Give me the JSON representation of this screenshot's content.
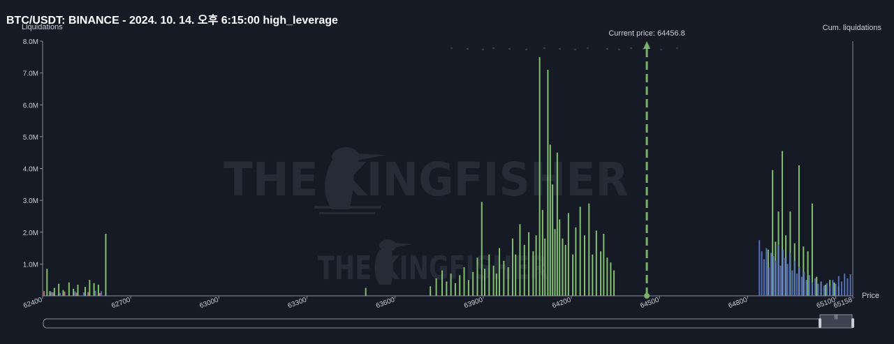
{
  "title": "BTC/USDT: BINANCE - 2024. 10. 14. 오후 6:15:00 high_leverage",
  "watermark": "THE KINGFISHER",
  "current_price_label": "Current price: 64456.8",
  "slider_grip": "|||",
  "colors": {
    "background": "#161a25",
    "green": "#8fd17a",
    "blue": "#5b78c8",
    "red": "#c87a7a",
    "current_price": "#79b168",
    "axis": "#8a8f9c"
  },
  "chart_data": {
    "type": "bar",
    "ylabel": "Liquidations",
    "y2label": "Cum. liquidations",
    "xlabel": "Price",
    "ylim": [
      0,
      8000000
    ],
    "xlim": [
      62400,
      65158
    ],
    "y_ticks": [
      "8.0M",
      "7.0M",
      "6.0M",
      "5.0M",
      "4.0M",
      "3.0M",
      "2.0M",
      "1.0M"
    ],
    "y_tick_values": [
      8000000,
      7000000,
      6000000,
      5000000,
      4000000,
      3000000,
      2000000,
      1000000
    ],
    "x_ticks": [
      "62400",
      "62700",
      "63000",
      "63300",
      "63600",
      "63900",
      "64200",
      "64500",
      "64800",
      "65100",
      "65158"
    ],
    "x_tick_values": [
      62400,
      62700,
      63000,
      63300,
      63600,
      63900,
      64200,
      64500,
      64800,
      65100,
      65158
    ],
    "current_price": 64456.8,
    "series": [
      {
        "color": "green",
        "points": [
          [
            62415,
            850000
          ],
          [
            62425,
            150000
          ],
          [
            62440,
            250000
          ],
          [
            62455,
            380000
          ],
          [
            62470,
            180000
          ],
          [
            62490,
            420000
          ],
          [
            62505,
            220000
          ],
          [
            62520,
            350000
          ],
          [
            62545,
            280000
          ],
          [
            62560,
            500000
          ],
          [
            62575,
            400000
          ],
          [
            62590,
            350000
          ],
          [
            62615,
            1950000
          ],
          [
            63500,
            250000
          ],
          [
            63720,
            300000
          ],
          [
            63740,
            550000
          ],
          [
            63760,
            800000
          ],
          [
            63775,
            450000
          ],
          [
            63790,
            700000
          ],
          [
            63805,
            400000
          ],
          [
            63820,
            650000
          ],
          [
            63835,
            900000
          ],
          [
            63850,
            500000
          ],
          [
            63865,
            750000
          ],
          [
            63880,
            1200000
          ],
          [
            63895,
            2950000
          ],
          [
            63905,
            850000
          ],
          [
            63920,
            1300000
          ],
          [
            63935,
            950000
          ],
          [
            63945,
            700000
          ],
          [
            63955,
            1500000
          ],
          [
            63970,
            1100000
          ],
          [
            63985,
            900000
          ],
          [
            64000,
            1800000
          ],
          [
            64010,
            1300000
          ],
          [
            64025,
            2250000
          ],
          [
            64040,
            1600000
          ],
          [
            64055,
            2000000
          ],
          [
            64070,
            1400000
          ],
          [
            64080,
            1900000
          ],
          [
            64092,
            7500000
          ],
          [
            64102,
            2700000
          ],
          [
            64110,
            1800000
          ],
          [
            64120,
            7100000
          ],
          [
            64128,
            4750000
          ],
          [
            64136,
            3500000
          ],
          [
            64144,
            2100000
          ],
          [
            64152,
            4500000
          ],
          [
            64160,
            2400000
          ],
          [
            64170,
            1800000
          ],
          [
            64180,
            1600000
          ],
          [
            64190,
            2600000
          ],
          [
            64205,
            1300000
          ],
          [
            64215,
            2150000
          ],
          [
            64230,
            2800000
          ],
          [
            64245,
            1900000
          ],
          [
            64260,
            2900000
          ],
          [
            64272,
            1300000
          ],
          [
            64285,
            2050000
          ],
          [
            64300,
            1400000
          ],
          [
            64310,
            1950000
          ],
          [
            64322,
            1200000
          ],
          [
            64334,
            1050000
          ],
          [
            64345,
            800000
          ],
          [
            64870,
            1450000
          ],
          [
            64885,
            3950000
          ],
          [
            64895,
            1700000
          ],
          [
            64905,
            2650000
          ],
          [
            64918,
            4550000
          ],
          [
            64930,
            1900000
          ],
          [
            64945,
            2650000
          ],
          [
            64960,
            1650000
          ],
          [
            64975,
            4100000
          ],
          [
            64990,
            1550000
          ],
          [
            65005,
            1400000
          ],
          [
            65020,
            2900000
          ],
          [
            65035,
            600000
          ],
          [
            65050,
            450000
          ],
          [
            65065,
            350000
          ],
          [
            65080,
            500000
          ],
          [
            65095,
            420000
          ],
          [
            65110,
            300000
          ]
        ]
      },
      {
        "color": "blue",
        "points": [
          [
            62430,
            120000
          ],
          [
            62460,
            90000
          ],
          [
            62510,
            140000
          ],
          [
            62540,
            110000
          ],
          [
            62580,
            160000
          ],
          [
            62600,
            150000
          ],
          [
            64840,
            1750000
          ],
          [
            64848,
            1400000
          ],
          [
            64856,
            1150000
          ],
          [
            64864,
            1500000
          ],
          [
            64872,
            900000
          ],
          [
            64880,
            1350000
          ],
          [
            64888,
            1250000
          ],
          [
            64896,
            1100000
          ],
          [
            64904,
            1600000
          ],
          [
            64912,
            950000
          ],
          [
            64920,
            1450000
          ],
          [
            64928,
            1200000
          ],
          [
            64936,
            1000000
          ],
          [
            64944,
            1350000
          ],
          [
            64952,
            800000
          ],
          [
            64960,
            1100000
          ],
          [
            64968,
            700000
          ],
          [
            64976,
            900000
          ],
          [
            64984,
            600000
          ],
          [
            64992,
            750000
          ],
          [
            65000,
            500000
          ],
          [
            65010,
            650000
          ],
          [
            65020,
            420000
          ],
          [
            65030,
            550000
          ],
          [
            65040,
            380000
          ],
          [
            65050,
            450000
          ],
          [
            65060,
            320000
          ],
          [
            65070,
            400000
          ],
          [
            65080,
            300000
          ],
          [
            65090,
            500000
          ],
          [
            65100,
            380000
          ],
          [
            65110,
            620000
          ],
          [
            65120,
            450000
          ],
          [
            65130,
            700000
          ],
          [
            65140,
            550000
          ],
          [
            65150,
            680000
          ]
        ]
      },
      {
        "color": "red",
        "points": [
          [
            62405,
            150000
          ],
          [
            62435,
            110000
          ],
          [
            62475,
            130000
          ],
          [
            62515,
            100000
          ],
          [
            62555,
            120000
          ],
          [
            62595,
            90000
          ]
        ]
      }
    ]
  }
}
